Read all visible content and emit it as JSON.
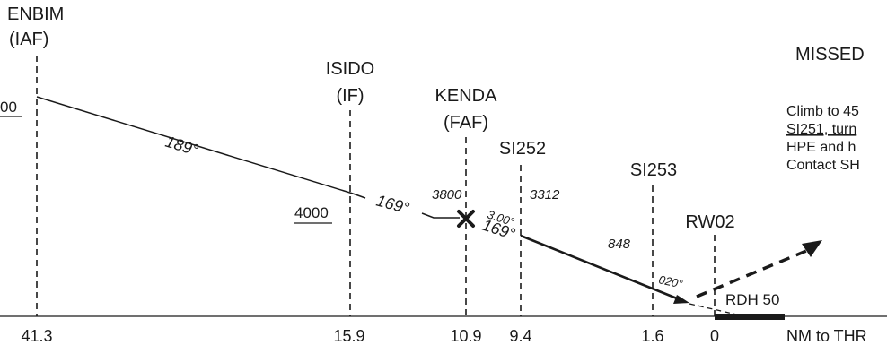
{
  "fixes": [
    {
      "name": "ENBIM",
      "role": "(IAF)",
      "distance": "41.3"
    },
    {
      "name": "ISIDO",
      "role": "(IF)",
      "distance": "15.9"
    },
    {
      "name": "KENDA",
      "role": "(FAF)",
      "distance": "10.9"
    },
    {
      "name": "SI252",
      "role": "",
      "distance": "9.4"
    },
    {
      "name": "SI253",
      "role": "",
      "distance": "1.6"
    },
    {
      "name": "RW02",
      "role": "",
      "distance": "0"
    }
  ],
  "altitudes": {
    "enbim_partial": "00",
    "isido": "4000",
    "kenda": "3800",
    "si252": "3312",
    "si253": "848"
  },
  "tracks": {
    "initial": "189°",
    "intermediate": "169°",
    "final": "169°",
    "glidepath": "3.00°",
    "missed_turn": "020°"
  },
  "rdh": "RDH 50",
  "axis_label": "NM to THR",
  "missed_approach": {
    "title": "MISSED",
    "lines": [
      "Climb to 45",
      "SI251, turn",
      "HPE and h",
      "Contact SH"
    ]
  }
}
